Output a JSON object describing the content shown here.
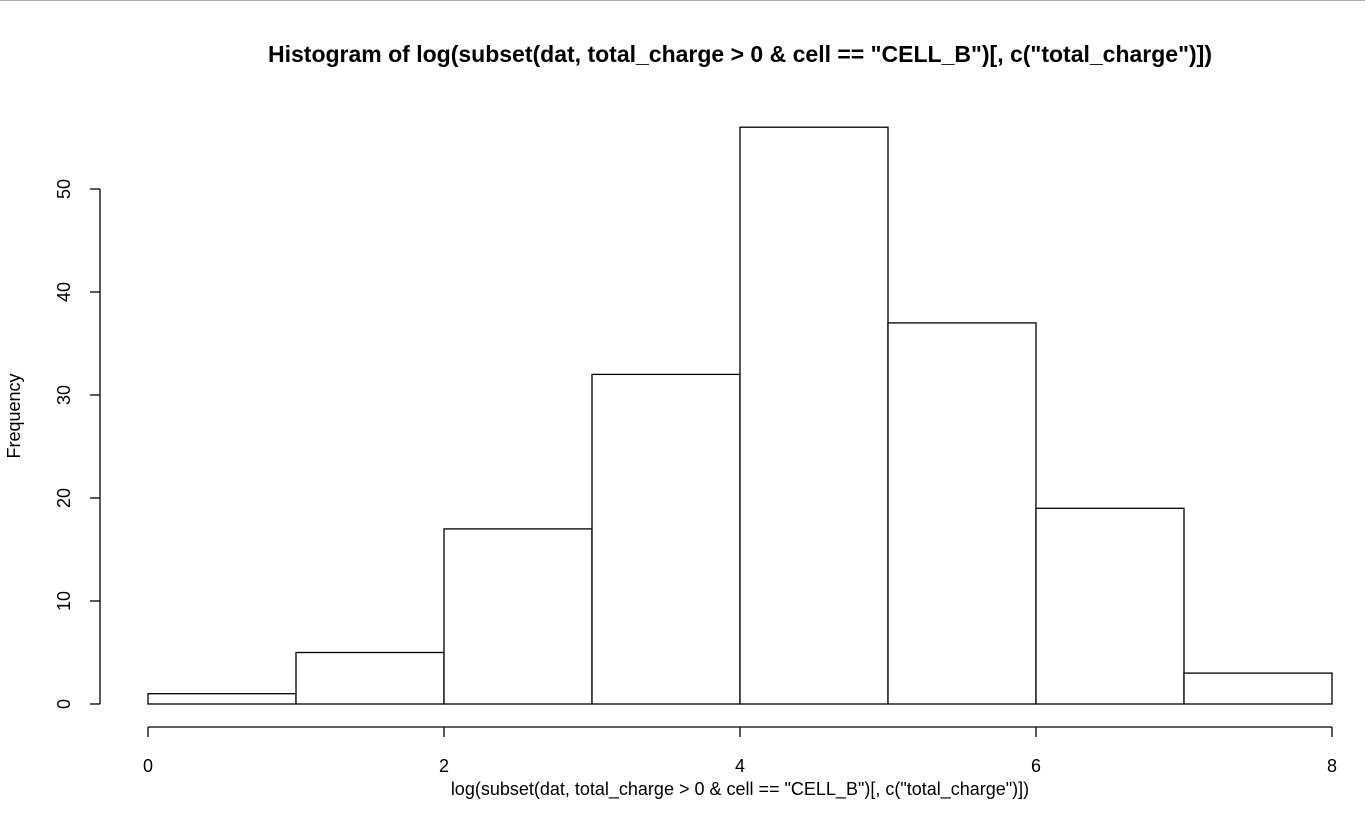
{
  "chart_data": {
    "type": "bar",
    "title": "Histogram of log(subset(dat, total_charge > 0 & cell == \"CELL_B\")[, c(\"total_charge\")])",
    "xlabel": "log(subset(dat, total_charge > 0 & cell == \"CELL_B\")[, c(\"total_charge\")])",
    "ylabel": "Frequency",
    "bins": [
      {
        "from": 0,
        "to": 1,
        "count": 1
      },
      {
        "from": 1,
        "to": 2,
        "count": 5
      },
      {
        "from": 2,
        "to": 3,
        "count": 17
      },
      {
        "from": 3,
        "to": 4,
        "count": 32
      },
      {
        "from": 4,
        "to": 5,
        "count": 56
      },
      {
        "from": 5,
        "to": 6,
        "count": 37
      },
      {
        "from": 6,
        "to": 7,
        "count": 19
      },
      {
        "from": 7,
        "to": 8,
        "count": 3
      }
    ],
    "xlim": [
      0,
      8
    ],
    "ylim": [
      0,
      56
    ],
    "x_ticks": [
      "0",
      "2",
      "4",
      "6",
      "8"
    ],
    "y_ticks": [
      "0",
      "10",
      "20",
      "30",
      "40",
      "50"
    ],
    "grid": false,
    "legend": "none"
  }
}
